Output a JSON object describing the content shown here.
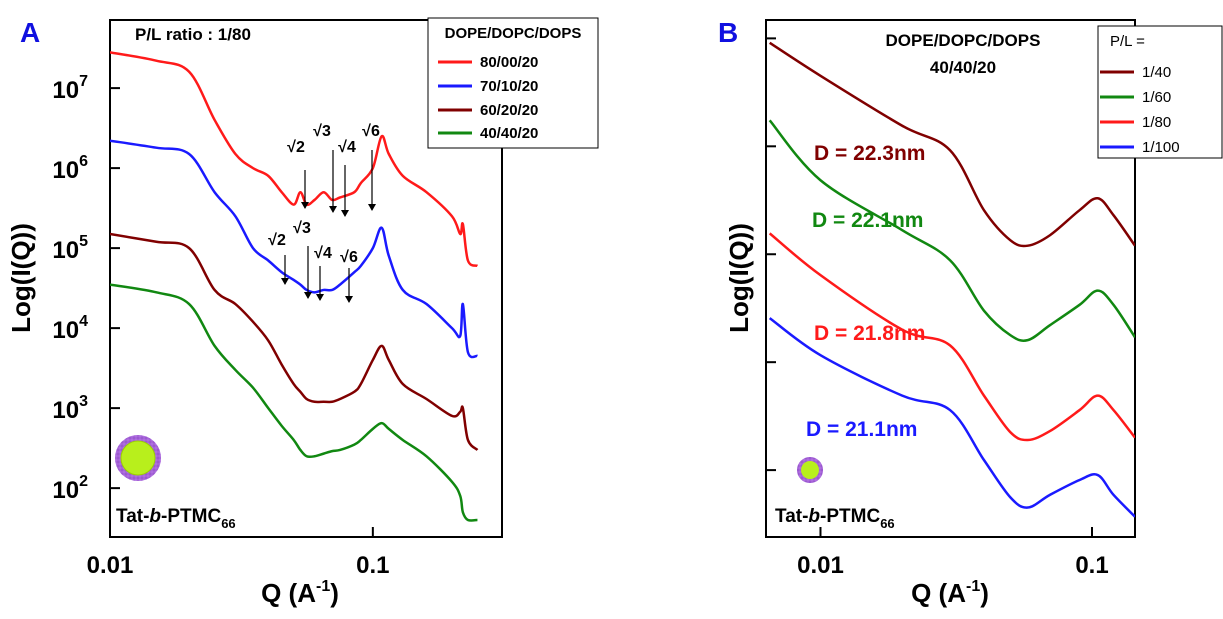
{
  "chart_data": [
    {
      "type": "line",
      "panel_label": "A",
      "title": "P/L ratio : 1/80",
      "log_x": true,
      "log_y": true,
      "y_label": "Log(I(Q))",
      "x_label": {
        "text": "Q (A",
        "superscript": "-1",
        "close": ")"
      },
      "xlim": [
        0.01,
        0.31
      ],
      "ylim": [
        24.5,
        71000000
      ],
      "xticks": [
        0.01,
        0.1
      ],
      "yticks": [
        {
          "value": 100,
          "label": "10",
          "exponent": "2"
        },
        {
          "value": 1000,
          "label": "10",
          "exponent": "3"
        },
        {
          "value": 10000,
          "label": "10",
          "exponent": "4"
        },
        {
          "value": 100000,
          "label": "10",
          "exponent": "5"
        },
        {
          "value": 1000000,
          "label": "10",
          "exponent": "6"
        },
        {
          "value": 10000000,
          "label": "10",
          "exponent": "7"
        }
      ],
      "legend_title": "DOPE/DOPC/DOPS",
      "x": [
        0.01,
        0.015,
        0.02,
        0.025,
        0.03,
        0.035,
        0.04,
        0.045,
        0.05,
        0.053,
        0.056,
        0.06,
        0.065,
        0.07,
        0.075,
        0.085,
        0.09,
        0.1,
        0.108,
        0.115,
        0.13,
        0.16,
        0.2,
        0.215,
        0.22,
        0.23,
        0.25
      ],
      "series": [
        {
          "name": "80/00/20",
          "color": "#ff1a1a",
          "values": [
            28000000,
            22000000,
            16000000,
            4000000,
            1500000,
            1000000,
            800000,
            500000,
            350000,
            500000,
            350000,
            400000,
            500000,
            400000,
            430000,
            500000,
            650000,
            1000000,
            2500000,
            1500000,
            800000,
            500000,
            250000,
            150000,
            200000,
            70000,
            60000
          ]
        },
        {
          "name": "70/10/20",
          "color": "#1a1aff",
          "values": [
            2200000,
            1800000,
            1500000,
            500000,
            250000,
            100000,
            70000,
            50000,
            40000,
            35000,
            30000,
            28000,
            30000,
            30000,
            35000,
            50000,
            60000,
            100000,
            180000,
            80000,
            30000,
            20000,
            10000,
            8000,
            20000,
            5000,
            4500
          ]
        },
        {
          "name": "60/20/20",
          "color": "#800000",
          "values": [
            150000,
            120000,
            100000,
            30000,
            20000,
            12000,
            7000,
            3500,
            2000,
            1600,
            1300,
            1200,
            1200,
            1200,
            1300,
            1600,
            2000,
            4000,
            6000,
            4000,
            2000,
            1300,
            800,
            900,
            1000,
            400,
            300
          ]
        },
        {
          "name": "40/40/20",
          "color": "#118811",
          "values": [
            35000,
            28000,
            20000,
            6000,
            3000,
            1800,
            1000,
            600,
            400,
            300,
            250,
            250,
            270,
            290,
            300,
            350,
            400,
            550,
            650,
            550,
            400,
            250,
            120,
            80,
            50,
            40,
            40
          ]
        }
      ],
      "arrow_labels": [
        "√2",
        "√3",
        "√4",
        "√6",
        "√2",
        "√3",
        "√4",
        "√6"
      ],
      "sample_label": {
        "prefix": "Tat-",
        "italic": "b",
        "suffix": "-PTMC",
        "subscript": "66"
      }
    },
    {
      "type": "line",
      "panel_label": "B",
      "title": [
        "DOPE/DOPC/DOPS",
        "40/40/20"
      ],
      "log_x": true,
      "log_y": true,
      "y_label": "Log(I(Q))",
      "x_label": {
        "text": "Q (A",
        "superscript": "-1",
        "close": ")"
      },
      "xlim": [
        0.0063,
        0.144
      ],
      "ylim": [
        0.24,
        14800
      ],
      "xticks": [
        0.01,
        0.1
      ],
      "yticks": [
        1,
        10,
        100,
        1000,
        10000
      ],
      "legend_title": "P/L =",
      "x": [
        0.0065,
        0.01,
        0.02,
        0.03,
        0.04,
        0.05,
        0.058,
        0.07,
        0.09,
        0.105,
        0.12,
        0.144
      ],
      "series": [
        {
          "name": "1/40",
          "color": "#800000",
          "label": "D = 22.3nm",
          "values": [
            9100,
            4500,
            1550,
            920,
            256,
            135,
            120,
            150,
            256,
            330,
            230,
            120
          ]
        },
        {
          "name": "1/60",
          "color": "#118811",
          "label": "D = 22.1nm",
          "values": [
            1740,
            485,
            167,
            88,
            30,
            17.8,
            16,
            22,
            34,
            46,
            34,
            17
          ]
        },
        {
          "name": "1/80",
          "color": "#ff1a1a",
          "label": "D = 21.8nm",
          "values": [
            156,
            64,
            20,
            14.3,
            4.9,
            2.25,
            1.9,
            2.3,
            3.6,
            4.9,
            3.6,
            2
          ]
        },
        {
          "name": "1/100",
          "color": "#1a1aff",
          "label": "D = 21.1nm",
          "values": [
            25.6,
            11.6,
            4.9,
            3.6,
            1.24,
            0.56,
            0.45,
            0.59,
            0.81,
            0.9,
            0.59,
            0.37
          ]
        }
      ],
      "sample_label": {
        "prefix": "Tat-",
        "italic": "b",
        "suffix": "-PTMC",
        "subscript": "66"
      }
    }
  ]
}
